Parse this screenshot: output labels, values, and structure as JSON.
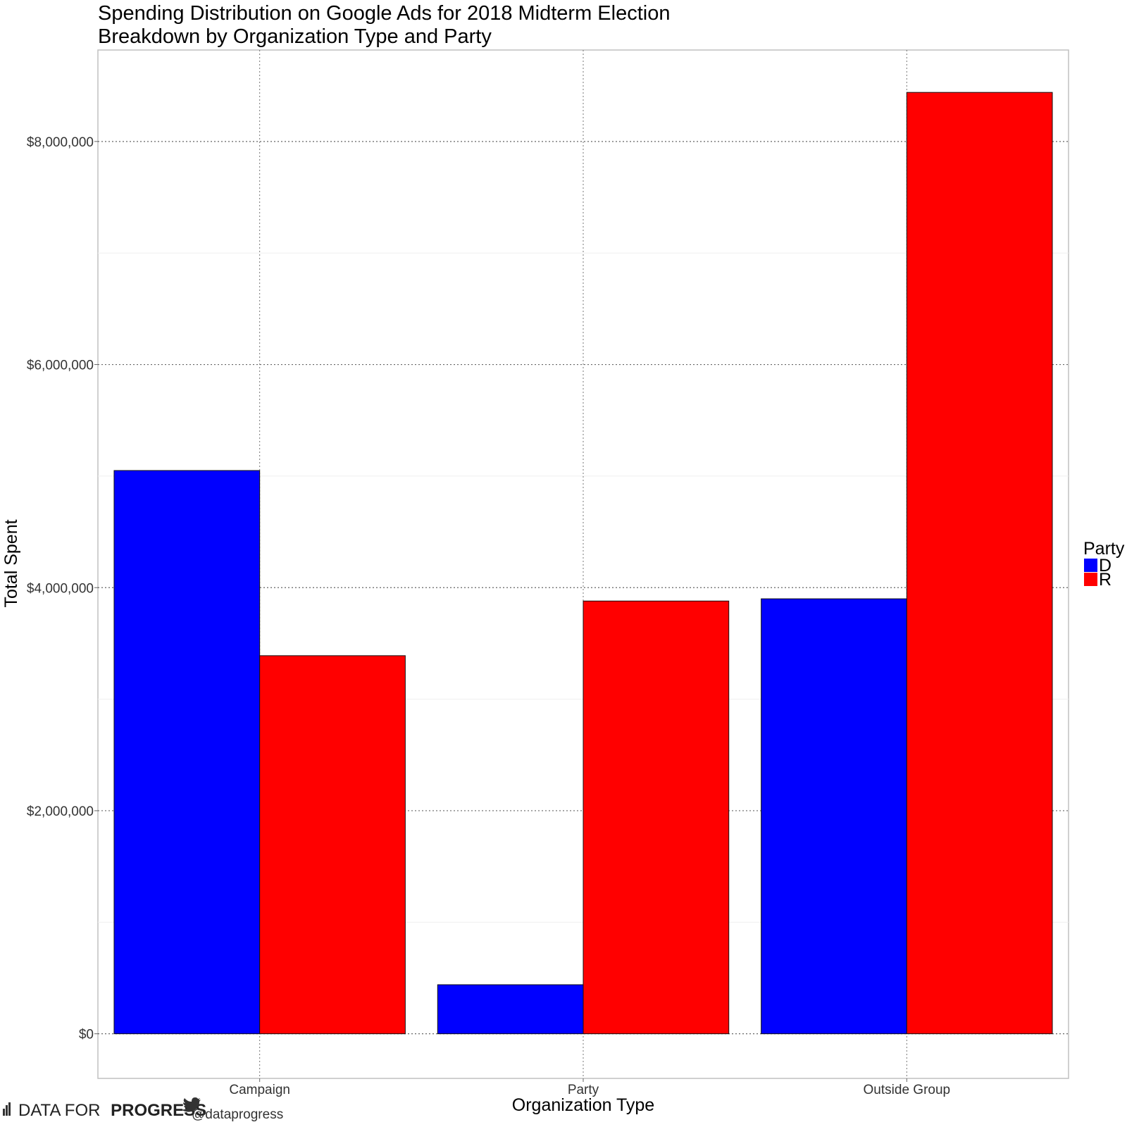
{
  "chart_data": {
    "type": "bar",
    "title": "Spending Distribution on Google Ads for 2018 Midterm Election",
    "subtitle": "Breakdown by Organization Type and Party",
    "xlabel": "Organization Type",
    "ylabel": "Total Spent",
    "categories": [
      "Campaign",
      "Party",
      "Outside Group"
    ],
    "series": [
      {
        "name": "D",
        "color": "#0000ff",
        "values": [
          5050000,
          440000,
          3900000
        ]
      },
      {
        "name": "R",
        "color": "#ff0000",
        "values": [
          3390000,
          3880000,
          8440000
        ]
      }
    ],
    "ylim": [
      -400000,
      8820000
    ],
    "yticks": [
      0,
      2000000,
      4000000,
      6000000,
      8000000
    ],
    "ytick_labels": [
      "$0",
      "$2,000,000",
      "$4,000,000",
      "$6,000,000",
      "$8,000,000"
    ],
    "grid": true,
    "legend": {
      "title": "Party",
      "position": "right"
    }
  },
  "footer": {
    "brand_light": "DATA FOR",
    "brand_bold": "PROGRESS",
    "handle": "@dataprogress"
  }
}
